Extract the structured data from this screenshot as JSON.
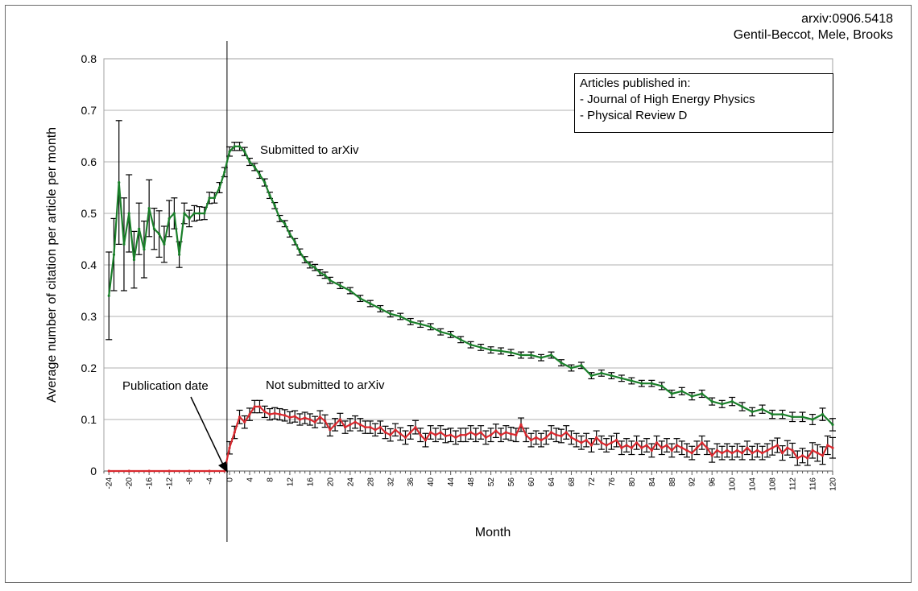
{
  "credit": {
    "line1": "arxiv:0906.5418",
    "line2": "Gentil-Beccot, Mele, Brooks"
  },
  "legend": {
    "heading": "Articles published in:",
    "items": [
      "- Journal of High Energy Physics",
      "- Physical Review D"
    ]
  },
  "annotations": {
    "submitted": "Submitted to arXiv",
    "not_submitted": "Not submitted to arXiv",
    "publication": "Publication date"
  },
  "colors": {
    "submitted": "#1a7f2a",
    "not_submitted": "#d9292f",
    "error_bar": "#000000",
    "grid": "#b0b0b0",
    "plot_border": "#a0a0a0"
  },
  "chart_data": {
    "type": "line",
    "xlabel": "Month",
    "ylabel": "Average number of citation per article per month",
    "xlim": [
      -25,
      120
    ],
    "ylim": [
      0,
      0.8
    ],
    "yticks": [
      "0",
      "0.1",
      "0.2",
      "0.3",
      "0.4",
      "0.5",
      "0.6",
      "0.7",
      "0.8"
    ],
    "xticks": [
      -24,
      -20,
      -16,
      -12,
      -8,
      -4,
      0,
      4,
      8,
      12,
      16,
      20,
      24,
      28,
      32,
      36,
      40,
      44,
      48,
      52,
      56,
      60,
      64,
      68,
      72,
      76,
      80,
      84,
      88,
      92,
      96,
      100,
      104,
      108,
      112,
      116,
      120
    ],
    "grid": "horizontal",
    "vline_x": -0.5,
    "series": [
      {
        "name": "Submitted to arXiv",
        "color": "#1a7f2a",
        "points": [
          [
            -24,
            0.34,
            0.085
          ],
          [
            -23,
            0.42,
            0.07
          ],
          [
            -22,
            0.56,
            0.12
          ],
          [
            -21,
            0.44,
            0.09
          ],
          [
            -20,
            0.5,
            0.075
          ],
          [
            -19,
            0.41,
            0.055
          ],
          [
            -18,
            0.47,
            0.05
          ],
          [
            -17,
            0.43,
            0.055
          ],
          [
            -16,
            0.51,
            0.055
          ],
          [
            -15,
            0.47,
            0.04
          ],
          [
            -14,
            0.46,
            0.045
          ],
          [
            -13,
            0.44,
            0.035
          ],
          [
            -12,
            0.49,
            0.035
          ],
          [
            -11,
            0.5,
            0.03
          ],
          [
            -10,
            0.42,
            0.025
          ],
          [
            -9,
            0.5,
            0.02
          ],
          [
            -8,
            0.49,
            0.016
          ],
          [
            -7,
            0.5,
            0.015
          ],
          [
            -6,
            0.5,
            0.013
          ],
          [
            -5,
            0.5,
            0.012
          ],
          [
            -4,
            0.53,
            0.011
          ],
          [
            -3,
            0.53,
            0.01
          ],
          [
            -2,
            0.55,
            0.01
          ],
          [
            -1,
            0.58,
            0.009
          ],
          [
            0,
            0.62,
            0.009
          ],
          [
            1,
            0.63,
            0.008
          ],
          [
            2,
            0.63,
            0.008
          ],
          [
            3,
            0.62,
            0.008
          ],
          [
            4,
            0.6,
            0.007
          ],
          [
            5,
            0.59,
            0.007
          ],
          [
            6,
            0.575,
            0.007
          ],
          [
            7,
            0.56,
            0.007
          ],
          [
            8,
            0.535,
            0.006
          ],
          [
            9,
            0.515,
            0.006
          ],
          [
            10,
            0.49,
            0.006
          ],
          [
            11,
            0.48,
            0.006
          ],
          [
            12,
            0.46,
            0.006
          ],
          [
            13,
            0.445,
            0.006
          ],
          [
            14,
            0.425,
            0.006
          ],
          [
            15,
            0.41,
            0.006
          ],
          [
            16,
            0.4,
            0.006
          ],
          [
            17,
            0.395,
            0.006
          ],
          [
            18,
            0.385,
            0.006
          ],
          [
            19,
            0.38,
            0.006
          ],
          [
            20,
            0.37,
            0.006
          ],
          [
            22,
            0.36,
            0.006
          ],
          [
            24,
            0.35,
            0.006
          ],
          [
            26,
            0.335,
            0.006
          ],
          [
            28,
            0.325,
            0.006
          ],
          [
            30,
            0.315,
            0.006
          ],
          [
            32,
            0.305,
            0.006
          ],
          [
            34,
            0.3,
            0.006
          ],
          [
            36,
            0.29,
            0.006
          ],
          [
            38,
            0.285,
            0.006
          ],
          [
            40,
            0.28,
            0.006
          ],
          [
            42,
            0.27,
            0.006
          ],
          [
            44,
            0.265,
            0.006
          ],
          [
            46,
            0.255,
            0.006
          ],
          [
            48,
            0.245,
            0.006
          ],
          [
            50,
            0.24,
            0.006
          ],
          [
            52,
            0.235,
            0.006
          ],
          [
            54,
            0.233,
            0.006
          ],
          [
            56,
            0.23,
            0.006
          ],
          [
            58,
            0.225,
            0.006
          ],
          [
            60,
            0.225,
            0.006
          ],
          [
            62,
            0.22,
            0.006
          ],
          [
            64,
            0.225,
            0.006
          ],
          [
            66,
            0.21,
            0.006
          ],
          [
            68,
            0.2,
            0.006
          ],
          [
            70,
            0.205,
            0.006
          ],
          [
            72,
            0.185,
            0.006
          ],
          [
            74,
            0.19,
            0.006
          ],
          [
            76,
            0.185,
            0.006
          ],
          [
            78,
            0.18,
            0.006
          ],
          [
            80,
            0.175,
            0.006
          ],
          [
            82,
            0.17,
            0.006
          ],
          [
            84,
            0.17,
            0.006
          ],
          [
            86,
            0.165,
            0.007
          ],
          [
            88,
            0.15,
            0.007
          ],
          [
            90,
            0.155,
            0.007
          ],
          [
            92,
            0.145,
            0.007
          ],
          [
            94,
            0.15,
            0.007
          ],
          [
            96,
            0.135,
            0.007
          ],
          [
            98,
            0.13,
            0.007
          ],
          [
            100,
            0.135,
            0.008
          ],
          [
            102,
            0.125,
            0.008
          ],
          [
            104,
            0.115,
            0.008
          ],
          [
            106,
            0.12,
            0.008
          ],
          [
            108,
            0.11,
            0.008
          ],
          [
            110,
            0.11,
            0.008
          ],
          [
            112,
            0.105,
            0.009
          ],
          [
            114,
            0.105,
            0.009
          ],
          [
            116,
            0.1,
            0.01
          ],
          [
            118,
            0.11,
            0.012
          ],
          [
            120,
            0.09,
            0.012
          ]
        ]
      },
      {
        "name": "Not submitted to arXiv",
        "color": "#d9292f",
        "points": [
          [
            -24,
            0.0,
            0
          ],
          [
            -20,
            0.0,
            0
          ],
          [
            -16,
            0.0,
            0
          ],
          [
            -12,
            0.0,
            0
          ],
          [
            -8,
            0.0,
            0
          ],
          [
            -4,
            0.0,
            0
          ],
          [
            -1,
            0.0,
            0
          ],
          [
            0,
            0.045,
            0.012
          ],
          [
            1,
            0.075,
            0.012
          ],
          [
            2,
            0.105,
            0.013
          ],
          [
            3,
            0.095,
            0.012
          ],
          [
            4,
            0.11,
            0.012
          ],
          [
            5,
            0.125,
            0.012
          ],
          [
            6,
            0.125,
            0.012
          ],
          [
            7,
            0.115,
            0.011
          ],
          [
            8,
            0.11,
            0.011
          ],
          [
            9,
            0.112,
            0.011
          ],
          [
            10,
            0.11,
            0.011
          ],
          [
            11,
            0.108,
            0.011
          ],
          [
            12,
            0.104,
            0.011
          ],
          [
            13,
            0.106,
            0.011
          ],
          [
            14,
            0.1,
            0.011
          ],
          [
            15,
            0.103,
            0.011
          ],
          [
            16,
            0.1,
            0.011
          ],
          [
            17,
            0.095,
            0.011
          ],
          [
            18,
            0.105,
            0.012
          ],
          [
            19,
            0.097,
            0.012
          ],
          [
            20,
            0.08,
            0.012
          ],
          [
            21,
            0.09,
            0.012
          ],
          [
            22,
            0.1,
            0.012
          ],
          [
            23,
            0.085,
            0.012
          ],
          [
            24,
            0.09,
            0.012
          ],
          [
            25,
            0.095,
            0.012
          ],
          [
            26,
            0.09,
            0.012
          ],
          [
            27,
            0.085,
            0.012
          ],
          [
            28,
            0.085,
            0.012
          ],
          [
            29,
            0.08,
            0.012
          ],
          [
            30,
            0.085,
            0.012
          ],
          [
            31,
            0.075,
            0.012
          ],
          [
            32,
            0.07,
            0.012
          ],
          [
            33,
            0.08,
            0.012
          ],
          [
            34,
            0.072,
            0.012
          ],
          [
            35,
            0.065,
            0.013
          ],
          [
            36,
            0.075,
            0.013
          ],
          [
            37,
            0.085,
            0.013
          ],
          [
            38,
            0.07,
            0.013
          ],
          [
            39,
            0.06,
            0.013
          ],
          [
            40,
            0.075,
            0.013
          ],
          [
            41,
            0.07,
            0.013
          ],
          [
            42,
            0.075,
            0.013
          ],
          [
            43,
            0.068,
            0.013
          ],
          [
            44,
            0.07,
            0.013
          ],
          [
            45,
            0.065,
            0.013
          ],
          [
            46,
            0.07,
            0.013
          ],
          [
            47,
            0.07,
            0.013
          ],
          [
            48,
            0.075,
            0.013
          ],
          [
            49,
            0.07,
            0.013
          ],
          [
            50,
            0.075,
            0.013
          ],
          [
            51,
            0.065,
            0.013
          ],
          [
            52,
            0.07,
            0.013
          ],
          [
            53,
            0.078,
            0.013
          ],
          [
            54,
            0.07,
            0.013
          ],
          [
            55,
            0.075,
            0.013
          ],
          [
            56,
            0.072,
            0.013
          ],
          [
            57,
            0.07,
            0.013
          ],
          [
            58,
            0.09,
            0.013
          ],
          [
            59,
            0.07,
            0.013
          ],
          [
            60,
            0.06,
            0.013
          ],
          [
            61,
            0.065,
            0.013
          ],
          [
            62,
            0.06,
            0.013
          ],
          [
            63,
            0.065,
            0.013
          ],
          [
            64,
            0.075,
            0.013
          ],
          [
            65,
            0.07,
            0.013
          ],
          [
            66,
            0.068,
            0.013
          ],
          [
            67,
            0.075,
            0.013
          ],
          [
            68,
            0.065,
            0.013
          ],
          [
            69,
            0.06,
            0.013
          ],
          [
            70,
            0.055,
            0.013
          ],
          [
            71,
            0.06,
            0.013
          ],
          [
            72,
            0.05,
            0.013
          ],
          [
            73,
            0.065,
            0.013
          ],
          [
            74,
            0.055,
            0.013
          ],
          [
            75,
            0.05,
            0.013
          ],
          [
            76,
            0.055,
            0.013
          ],
          [
            77,
            0.06,
            0.013
          ],
          [
            78,
            0.045,
            0.013
          ],
          [
            79,
            0.05,
            0.013
          ],
          [
            80,
            0.045,
            0.013
          ],
          [
            81,
            0.055,
            0.013
          ],
          [
            82,
            0.045,
            0.013
          ],
          [
            83,
            0.05,
            0.013
          ],
          [
            84,
            0.04,
            0.013
          ],
          [
            85,
            0.055,
            0.013
          ],
          [
            86,
            0.045,
            0.013
          ],
          [
            87,
            0.05,
            0.013
          ],
          [
            88,
            0.04,
            0.013
          ],
          [
            89,
            0.05,
            0.013
          ],
          [
            90,
            0.045,
            0.013
          ],
          [
            91,
            0.04,
            0.013
          ],
          [
            92,
            0.035,
            0.013
          ],
          [
            93,
            0.045,
            0.013
          ],
          [
            94,
            0.055,
            0.013
          ],
          [
            95,
            0.045,
            0.013
          ],
          [
            96,
            0.03,
            0.013
          ],
          [
            97,
            0.04,
            0.013
          ],
          [
            98,
            0.035,
            0.013
          ],
          [
            99,
            0.04,
            0.013
          ],
          [
            100,
            0.035,
            0.013
          ],
          [
            101,
            0.04,
            0.013
          ],
          [
            102,
            0.035,
            0.013
          ],
          [
            103,
            0.045,
            0.013
          ],
          [
            104,
            0.035,
            0.013
          ],
          [
            105,
            0.04,
            0.013
          ],
          [
            106,
            0.035,
            0.013
          ],
          [
            107,
            0.04,
            0.013
          ],
          [
            108,
            0.045,
            0.014
          ],
          [
            109,
            0.05,
            0.014
          ],
          [
            110,
            0.035,
            0.014
          ],
          [
            111,
            0.045,
            0.014
          ],
          [
            112,
            0.04,
            0.014
          ],
          [
            113,
            0.025,
            0.014
          ],
          [
            114,
            0.03,
            0.014
          ],
          [
            115,
            0.025,
            0.014
          ],
          [
            116,
            0.04,
            0.015
          ],
          [
            117,
            0.035,
            0.016
          ],
          [
            118,
            0.03,
            0.017
          ],
          [
            119,
            0.05,
            0.018
          ],
          [
            120,
            0.045,
            0.02
          ]
        ]
      }
    ]
  }
}
